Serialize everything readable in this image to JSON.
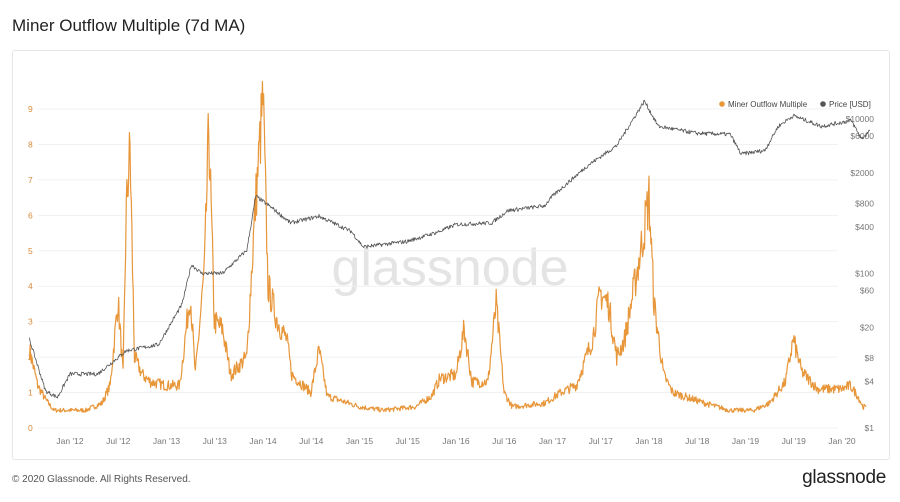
{
  "title": "Miner Outflow Multiple (7d MA)",
  "footer": "© 2020 Glassnode. All Rights Reserved.",
  "logo": "glassnode",
  "watermark": "glassnode",
  "chart_data": {
    "type": "line",
    "title": "Miner Outflow Multiple (7d MA)",
    "legend_placement": "top-right",
    "grid": true,
    "x_ticks": [
      "Jan '12",
      "Jul '12",
      "Jan '13",
      "Jul '13",
      "Jan '14",
      "Jul '14",
      "Jan '15",
      "Jul '15",
      "Jan '16",
      "Jul '16",
      "Jan '17",
      "Jul '17",
      "Jan '18",
      "Jul '18",
      "Jan '19",
      "Jul '19",
      "Jan '20"
    ],
    "y_left": {
      "ticks": [
        "0",
        "1",
        "2",
        "3",
        "4",
        "5",
        "6",
        "7",
        "8",
        "9"
      ],
      "range": [
        0,
        9
      ],
      "color": "#e8963a"
    },
    "y_right": {
      "scale": "log",
      "ticks": [
        "$1",
        "$4",
        "$8",
        "$20",
        "$60",
        "$100",
        "$400",
        "$800",
        "$2000",
        "$6000",
        "$10000"
      ],
      "tick_values": [
        1,
        4,
        8,
        20,
        60,
        100,
        400,
        800,
        2000,
        6000,
        10000
      ],
      "range": [
        1,
        20000
      ],
      "color": "#555555"
    },
    "series": [
      {
        "name": "Miner Outflow Multiple",
        "axis": "left",
        "color": "#e8963a",
        "x": [
          "2011-08-01",
          "2011-09-01",
          "2011-10-01",
          "2011-11-01",
          "2012-01-01",
          "2012-03-01",
          "2012-05-01",
          "2012-06-01",
          "2012-07-01",
          "2012-07-20",
          "2012-08-01",
          "2012-08-15",
          "2012-09-01",
          "2012-10-01",
          "2012-11-01",
          "2013-01-01",
          "2013-02-20",
          "2013-04-01",
          "2013-04-20",
          "2013-05-25",
          "2013-06-10",
          "2013-07-01",
          "2013-08-01",
          "2013-09-01",
          "2013-11-01",
          "2013-12-01",
          "2014-01-01",
          "2014-01-20",
          "2014-02-25",
          "2014-04-01",
          "2014-04-20",
          "2014-07-01",
          "2014-08-01",
          "2014-09-01",
          "2015-01-01",
          "2015-04-01",
          "2015-08-01",
          "2015-10-01",
          "2015-11-01",
          "2016-01-01",
          "2016-02-01",
          "2016-03-01",
          "2016-05-01",
          "2016-06-01",
          "2016-07-01",
          "2016-08-01",
          "2016-12-01",
          "2017-02-01",
          "2017-04-01",
          "2017-06-01",
          "2017-07-01",
          "2017-08-01",
          "2017-09-01",
          "2017-10-01",
          "2017-12-01",
          "2018-01-01",
          "2018-01-20",
          "2018-02-25",
          "2018-04-01",
          "2018-08-01",
          "2018-11-01",
          "2019-02-01",
          "2019-04-01",
          "2019-06-01",
          "2019-07-01",
          "2019-08-01",
          "2019-10-01",
          "2020-01-01",
          "2020-02-01",
          "2020-03-01",
          "2020-03-20",
          "2020-04-01"
        ],
        "y": [
          2.2,
          1.2,
          0.8,
          0.5,
          0.5,
          0.5,
          0.7,
          1.2,
          3.6,
          1.5,
          6.1,
          7.9,
          2.0,
          1.5,
          1.3,
          1.2,
          1.2,
          3.8,
          1.5,
          4.5,
          8.5,
          3.0,
          2.8,
          1.5,
          2.0,
          6.0,
          9.3,
          4.0,
          3.0,
          2.5,
          1.5,
          1.0,
          2.2,
          0.9,
          0.6,
          0.5,
          0.6,
          0.9,
          1.4,
          1.5,
          2.8,
          1.3,
          1.3,
          3.5,
          1.0,
          0.6,
          0.7,
          1.0,
          1.2,
          2.5,
          3.8,
          3.5,
          2.0,
          2.5,
          5.0,
          6.5,
          3.5,
          1.5,
          1.0,
          0.7,
          0.5,
          0.5,
          0.7,
          1.3,
          2.5,
          1.6,
          1.1,
          1.1,
          1.2,
          0.9,
          0.6,
          0.6
        ]
      },
      {
        "name": "Price [USD]",
        "axis": "right",
        "color": "#555555",
        "x": [
          "2011-08-01",
          "2011-10-01",
          "2011-11-15",
          "2012-01-01",
          "2012-04-15",
          "2012-08-01",
          "2012-12-01",
          "2013-03-01",
          "2013-04-05",
          "2013-05-15",
          "2013-08-01",
          "2013-11-01",
          "2013-12-05",
          "2014-02-05",
          "2014-04-15",
          "2014-08-01",
          "2014-12-01",
          "2015-01-15",
          "2015-07-01",
          "2015-11-01",
          "2016-01-01",
          "2016-05-15",
          "2016-07-15",
          "2016-12-01",
          "2017-01-01",
          "2017-05-15",
          "2017-09-01",
          "2017-12-15",
          "2018-02-05",
          "2018-07-01",
          "2018-11-05",
          "2018-12-15",
          "2019-03-15",
          "2019-05-05",
          "2019-07-01",
          "2019-10-15",
          "2020-02-05",
          "2020-03-15",
          "2020-04-15"
        ],
        "y": [
          14,
          3,
          2.5,
          5,
          5,
          10,
          12,
          40,
          130,
          100,
          100,
          200,
          1000,
          700,
          450,
          550,
          350,
          220,
          260,
          350,
          430,
          450,
          650,
          750,
          1000,
          2500,
          4500,
          17000,
          8000,
          6500,
          6300,
          3500,
          3900,
          8000,
          11000,
          8000,
          9500,
          5500,
          7000
        ]
      }
    ]
  }
}
